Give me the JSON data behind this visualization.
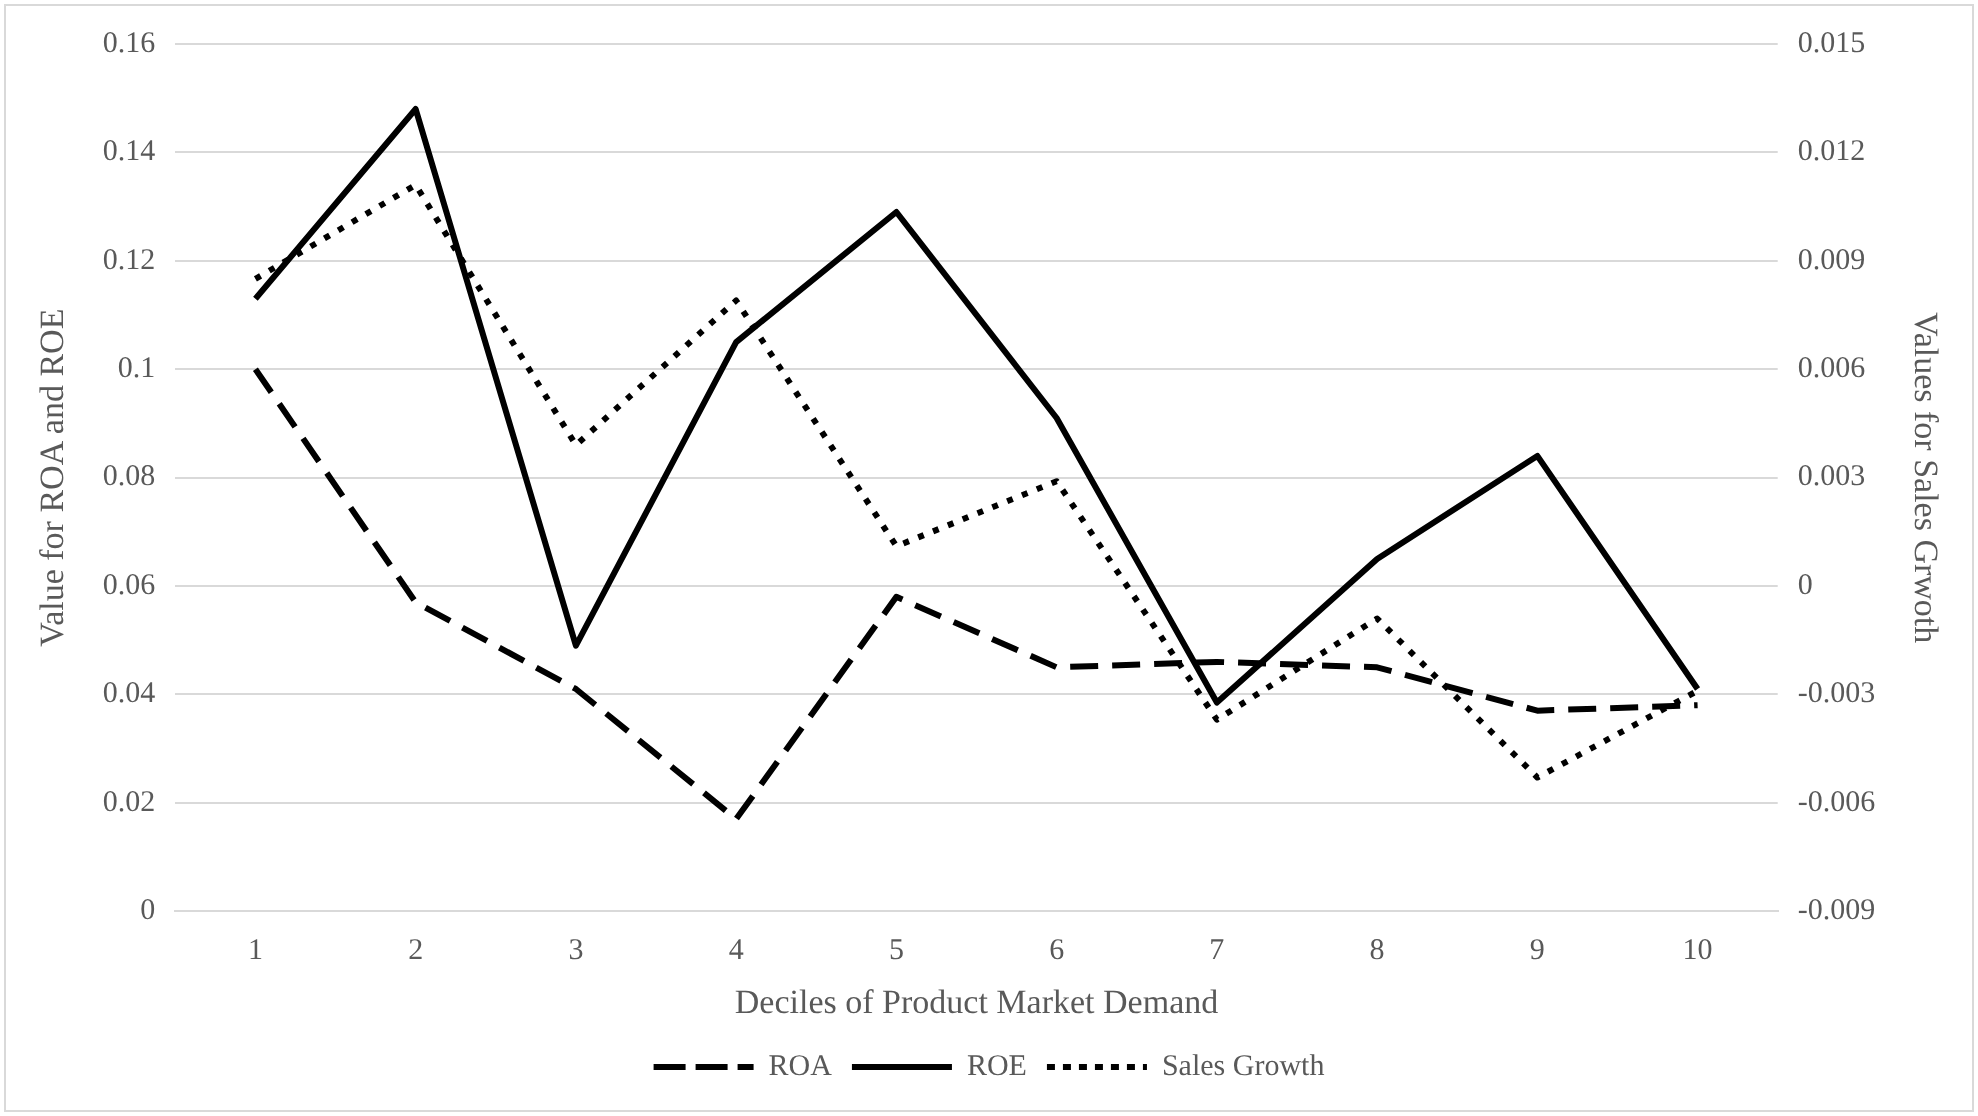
{
  "chart_data": {
    "type": "line",
    "xlabel": "Deciles of Product Market Demand",
    "ylabel": "Value for ROA and ROE",
    "y2label": "Values for Sales Grwoth",
    "categories": [
      "1",
      "2",
      "3",
      "4",
      "5",
      "6",
      "7",
      "8",
      "9",
      "10"
    ],
    "series": [
      {
        "name": "ROA",
        "color": "#000000",
        "line_style": "dashed",
        "values": [
          0.1,
          0.057,
          0.041,
          0.017,
          0.058,
          0.045,
          0.046,
          0.045,
          0.037,
          0.038
        ]
      },
      {
        "name": "ROE",
        "color": "#000000",
        "line_style": "solid",
        "values": [
          0.113,
          0.148,
          0.049,
          0.105,
          0.129,
          0.091,
          0.0385,
          0.065,
          0.084,
          0.041
        ]
      },
      {
        "name": "Sales Growth",
        "color": "#000000",
        "line_style": "dotted",
        "axis": "y2",
        "values": [
          0.0085,
          0.0111,
          0.0039,
          0.0079,
          0.0011,
          0.0029,
          -0.0037,
          -0.0009,
          -0.0053,
          -0.0029
        ]
      }
    ],
    "ylim": [
      0,
      0.16
    ],
    "yticks": [
      0,
      0.02,
      0.04,
      0.06,
      0.08,
      0.1,
      0.12,
      0.14,
      0.16
    ],
    "y2lim": [
      -0.009,
      0.015
    ],
    "y2ticks": [
      -0.009,
      -0.006,
      -0.003,
      0,
      0.003,
      0.006,
      0.009,
      0.012,
      0.015
    ],
    "grid": "y",
    "legend": "bottom",
    "marker": "none"
  }
}
